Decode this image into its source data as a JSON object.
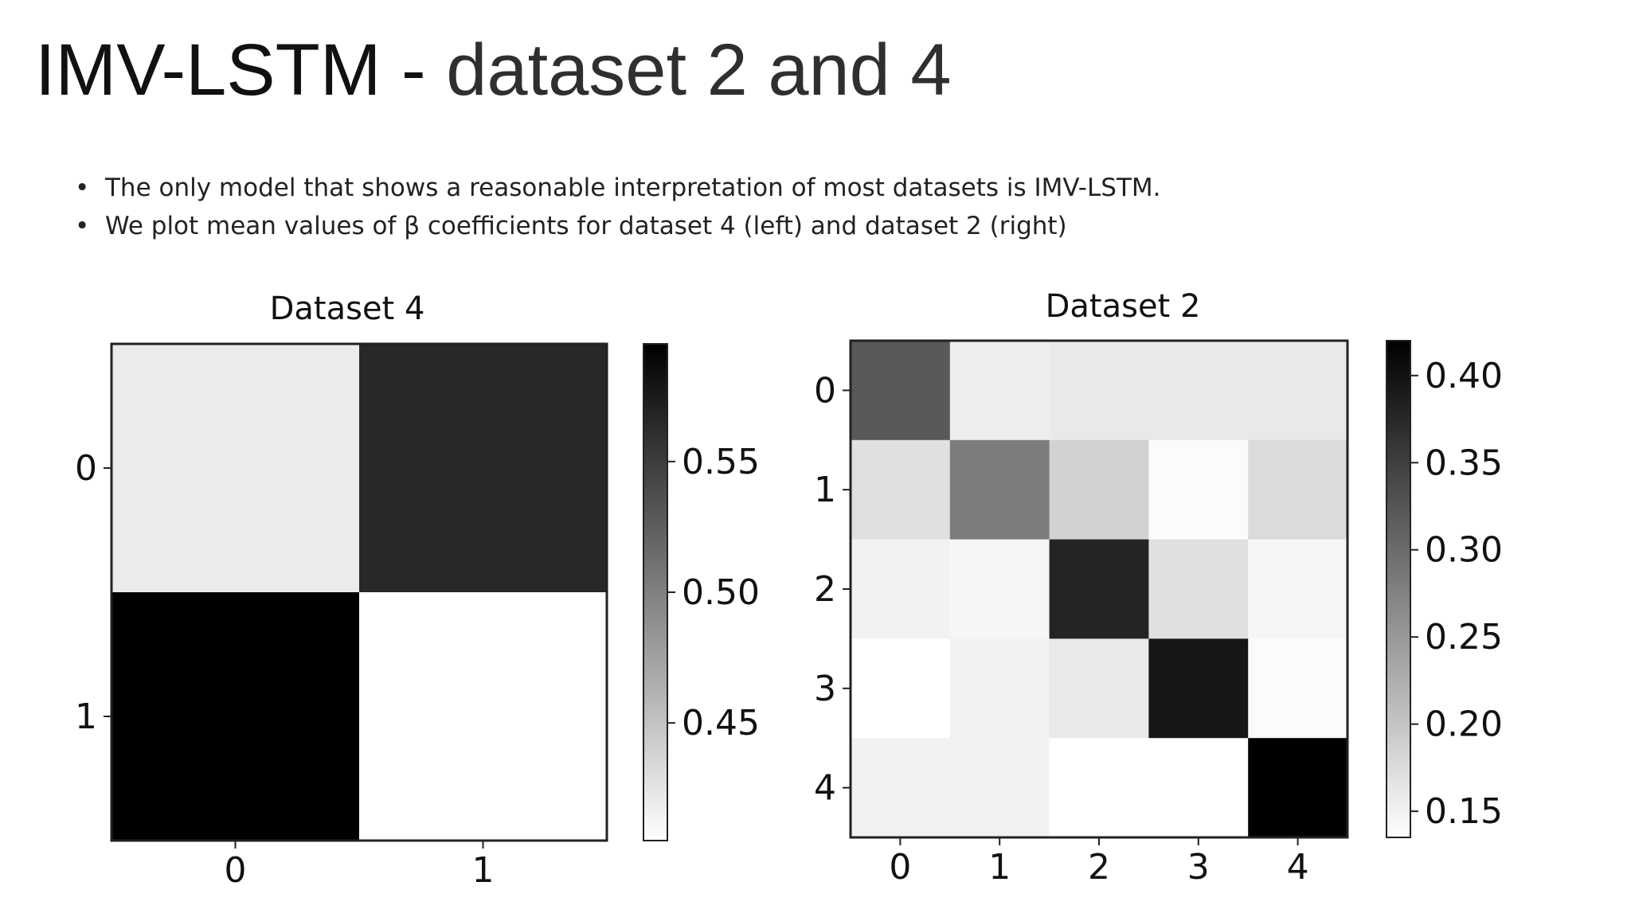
{
  "slide": {
    "title_part_a": "IMV-LSTM - ",
    "title_part_b": "dataset 2 and 4",
    "bullets": [
      "The only model that shows a reasonable interpretation of most datasets is IMV-LSTM.",
      "We plot mean values of β coefficients for dataset 4 (left) and dataset 2 (right)"
    ]
  },
  "colors": {
    "colormap": "gray_r",
    "background": "#ffffff",
    "text": "#111111"
  },
  "chart_data": [
    {
      "type": "heatmap",
      "title": "Dataset 4",
      "x_ticks": [
        "0",
        "1"
      ],
      "y_ticks": [
        "0",
        "1"
      ],
      "values": [
        [
          0.42,
          0.565
        ],
        [
          0.595,
          0.405
        ]
      ],
      "colorbar": {
        "range": [
          0.405,
          0.595
        ],
        "ticks": [
          0.45,
          0.5,
          0.55
        ],
        "tick_labels": [
          "0.45",
          "0.50",
          "0.55"
        ]
      }
    },
    {
      "type": "heatmap",
      "title": "Dataset 2",
      "x_ticks": [
        "0",
        "1",
        "2",
        "3",
        "4"
      ],
      "y_ticks": [
        "0",
        "1",
        "2",
        "3",
        "4"
      ],
      "values": [
        [
          0.32,
          0.155,
          0.16,
          0.16,
          0.16
        ],
        [
          0.17,
          0.28,
          0.185,
          0.14,
          0.175
        ],
        [
          0.15,
          0.145,
          0.38,
          0.17,
          0.145
        ],
        [
          0.135,
          0.15,
          0.16,
          0.395,
          0.14
        ],
        [
          0.15,
          0.15,
          0.135,
          0.135,
          0.42
        ]
      ],
      "colorbar": {
        "range": [
          0.135,
          0.42
        ],
        "ticks": [
          0.15,
          0.2,
          0.25,
          0.3,
          0.35,
          0.4
        ],
        "tick_labels": [
          "0.15",
          "0.20",
          "0.25",
          "0.30",
          "0.35",
          "0.40"
        ]
      }
    }
  ]
}
